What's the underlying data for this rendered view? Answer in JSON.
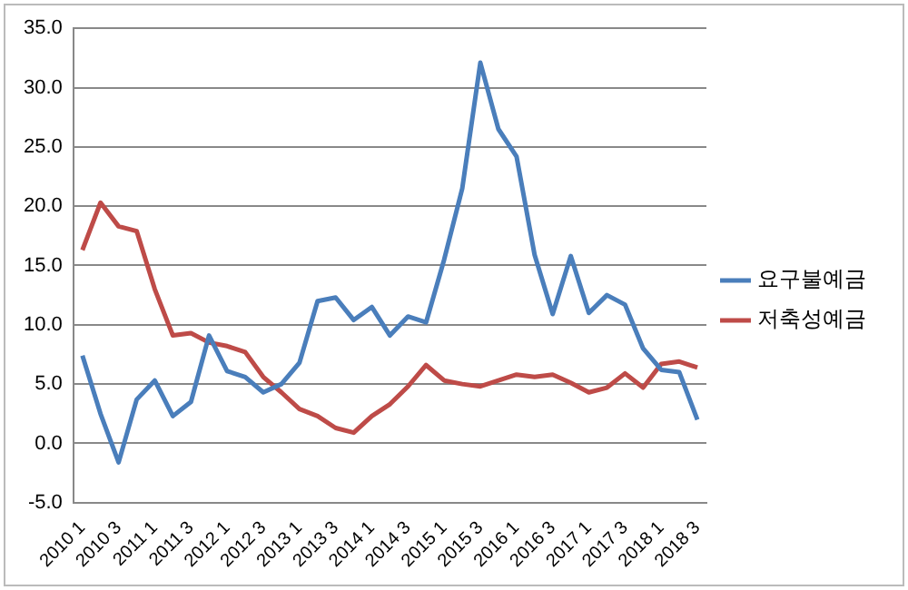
{
  "chart_data": {
    "type": "line",
    "categories": [
      "2010 1",
      null,
      "2010 3",
      null,
      "2011 1",
      null,
      "2011 3",
      null,
      "2012 1",
      null,
      "2012 3",
      null,
      "2013 1",
      null,
      "2013 3",
      null,
      "2014 1",
      null,
      "2014 3",
      null,
      "2015 1",
      null,
      "2015 3",
      null,
      "2016 1",
      null,
      "2016 3",
      null,
      "2017 1",
      null,
      "2017 3",
      null,
      "2018 1",
      null,
      "2018 3"
    ],
    "series": [
      {
        "name": "요구불예금",
        "color": "#4a7ebb",
        "values": [
          7.4,
          2.5,
          -1.6,
          3.7,
          5.3,
          2.3,
          3.5,
          9.1,
          6.1,
          5.6,
          4.3,
          5.0,
          6.8,
          12.0,
          12.3,
          10.4,
          11.5,
          9.1,
          10.7,
          10.2,
          15.5,
          21.5,
          32.1,
          26.5,
          24.2,
          15.9,
          10.9,
          15.8,
          11.0,
          12.5,
          11.7,
          8.0,
          6.2,
          6.0,
          2.0
        ]
      },
      {
        "name": "저축성예금",
        "color": "#be4b48",
        "values": [
          16.3,
          20.3,
          18.3,
          17.9,
          13.0,
          9.1,
          9.3,
          8.5,
          8.2,
          7.7,
          5.6,
          4.3,
          2.9,
          2.3,
          1.3,
          0.9,
          2.3,
          3.3,
          4.8,
          6.6,
          5.3,
          5.0,
          4.8,
          5.3,
          5.8,
          5.6,
          5.8,
          5.1,
          4.3,
          4.7,
          5.9,
          4.7,
          6.7,
          6.9,
          6.4
        ]
      }
    ],
    "ylim": [
      -5,
      35
    ],
    "yticks": [
      {
        "value": -5,
        "label": "-5.0"
      },
      {
        "value": 0,
        "label": "0.0"
      },
      {
        "value": 5,
        "label": "5.0"
      },
      {
        "value": 10,
        "label": "10.0"
      },
      {
        "value": 15,
        "label": "15.0"
      },
      {
        "value": 20,
        "label": "20.0"
      },
      {
        "value": 25,
        "label": "25.0"
      },
      {
        "value": 30,
        "label": "30.0"
      },
      {
        "value": 35,
        "label": "35.0"
      }
    ],
    "grid": "y",
    "legend": "right",
    "marker": "none",
    "line_style": "solid"
  }
}
